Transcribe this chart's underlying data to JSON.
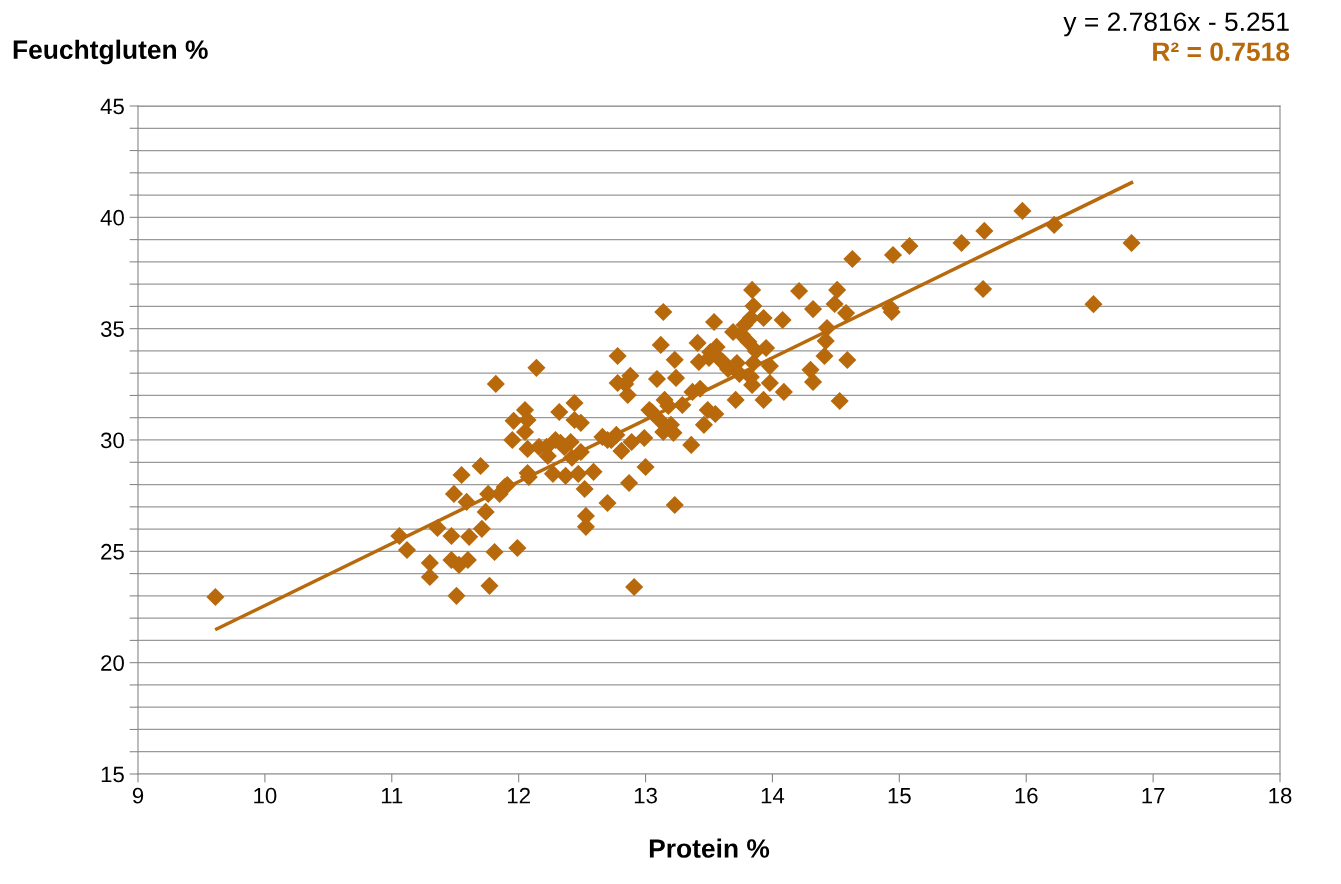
{
  "chart_data": {
    "type": "scatter",
    "xlabel": "Protein %",
    "ylabel": "Feuchtgluten %",
    "annotations": [
      "y = 2.7816x - 5.251",
      "R² = 0.7518"
    ],
    "xlim": [
      9,
      18
    ],
    "xticks": [
      9,
      10,
      11,
      12,
      13,
      14,
      15,
      16,
      17,
      18
    ],
    "ylim": [
      15,
      45
    ],
    "yticks": [
      15,
      {
        "value": 16,
        "label": null
      },
      {
        "value": 17,
        "label": null
      },
      {
        "value": 18,
        "label": null
      },
      {
        "value": 19,
        "label": null
      },
      20,
      {
        "value": 21,
        "label": null
      },
      {
        "value": 22,
        "label": null
      },
      {
        "value": 23,
        "label": null
      },
      {
        "value": 24,
        "label": null
      },
      25,
      {
        "value": 26,
        "label": null
      },
      {
        "value": 27,
        "label": null
      },
      {
        "value": 28,
        "label": null
      },
      {
        "value": 29,
        "label": null
      },
      30,
      {
        "value": 31,
        "label": null
      },
      {
        "value": 32,
        "label": null
      },
      {
        "value": 33,
        "label": null
      },
      {
        "value": 34,
        "label": null
      },
      35,
      {
        "value": 36,
        "label": null
      },
      {
        "value": 37,
        "label": null
      },
      {
        "value": 38,
        "label": null
      },
      {
        "value": 39,
        "label": null
      },
      40,
      {
        "value": 41,
        "label": null
      },
      {
        "value": 42,
        "label": null
      },
      {
        "value": 43,
        "label": null
      },
      {
        "value": 44,
        "label": null
      },
      45
    ],
    "grid": "y",
    "series": [
      {
        "marker": "diamond",
        "color": "#b8690c",
        "x": [
          9.61,
          11.06,
          11.12,
          11.3,
          11.3,
          11.36,
          11.49,
          11.55,
          11.59,
          11.47,
          11.47,
          11.53,
          11.51,
          11.6,
          11.61,
          11.71,
          11.7,
          11.74,
          11.76,
          11.77,
          11.81,
          11.85,
          11.89,
          11.91,
          11.82,
          11.95,
          11.96,
          11.99,
          12.05,
          12.05,
          12.07,
          12.07,
          12.07,
          12.08,
          12.14,
          12.16,
          12.22,
          12.23,
          12.27,
          12.29,
          12.32,
          12.33,
          12.37,
          12.36,
          12.41,
          12.42,
          12.44,
          12.47,
          12.44,
          12.49,
          12.49,
          12.52,
          12.53,
          12.53,
          12.59,
          12.66,
          12.7,
          12.7,
          12.73,
          12.77,
          12.78,
          12.78,
          12.81,
          12.84,
          12.86,
          12.88,
          12.89,
          12.87,
          12.91,
          12.99,
          13.0,
          13.03,
          13.05,
          13.09,
          13.11,
          13.14,
          13.12,
          13.14,
          13.15,
          13.18,
          13.2,
          13.22,
          13.23,
          13.24,
          13.23,
          13.29,
          13.36,
          13.37,
          13.41,
          13.42,
          13.43,
          13.46,
          13.49,
          13.5,
          13.51,
          13.54,
          13.55,
          13.56,
          13.59,
          13.61,
          13.65,
          13.72,
          13.69,
          13.71,
          13.74,
          13.76,
          13.78,
          13.81,
          13.83,
          13.83,
          13.84,
          13.85,
          13.84,
          13.85,
          13.87,
          13.93,
          13.93,
          13.95,
          13.98,
          13.98,
          14.08,
          14.09,
          14.21,
          14.3,
          14.32,
          14.32,
          14.41,
          14.42,
          14.43,
          14.49,
          14.51,
          14.53,
          14.58,
          14.59,
          14.63,
          14.93,
          14.94,
          14.95,
          15.08,
          15.49,
          15.66,
          15.67,
          15.97,
          16.22,
          16.53,
          16.83
        ],
        "values": [
          22.95,
          25.69,
          25.06,
          24.48,
          23.85,
          26.05,
          27.58,
          28.43,
          27.22,
          25.69,
          24.61,
          24.39,
          23.0,
          24.61,
          25.65,
          26.01,
          28.83,
          26.77,
          27.58,
          23.45,
          24.97,
          27.58,
          27.89,
          27.98,
          32.52,
          30.0,
          30.86,
          25.15,
          31.35,
          30.36,
          30.9,
          29.6,
          28.52,
          28.34,
          33.24,
          29.69,
          29.69,
          29.28,
          28.48,
          30.0,
          31.26,
          29.87,
          28.39,
          29.69,
          29.91,
          29.2,
          30.9,
          28.48,
          31.66,
          29.46,
          30.77,
          27.8,
          26.59,
          26.1,
          28.57,
          30.14,
          27.17,
          30.0,
          30.0,
          30.23,
          32.56,
          33.77,
          29.51,
          32.52,
          32.02,
          32.88,
          29.91,
          28.07,
          23.4,
          30.09,
          28.79,
          31.35,
          31.26,
          32.74,
          30.9,
          30.36,
          34.27,
          35.75,
          31.8,
          31.53,
          30.68,
          30.32,
          33.6,
          32.79,
          27.08,
          31.57,
          29.78,
          32.16,
          34.36,
          33.5,
          32.3,
          30.68,
          31.35,
          33.68,
          33.95,
          35.3,
          31.17,
          34.18,
          33.6,
          33.5,
          33.19,
          33.46,
          34.85,
          31.8,
          32.97,
          34.72,
          35.17,
          34.41,
          35.48,
          32.83,
          32.47,
          33.46,
          36.74,
          36.02,
          34.0,
          35.48,
          31.8,
          34.13,
          33.32,
          32.56,
          35.39,
          32.16,
          36.69,
          33.15,
          32.61,
          35.88,
          33.77,
          34.45,
          35.03,
          36.11,
          36.74,
          31.75,
          35.7,
          33.59,
          38.13,
          35.93,
          35.75,
          38.31,
          38.71,
          38.85,
          36.78,
          39.39,
          40.29,
          39.66,
          36.1,
          38.85
        ]
      },
      {
        "type": "line",
        "color": "#b8690c",
        "x": [
          9.62,
          16.83
        ],
        "values": [
          21.51,
          41.56
        ]
      }
    ]
  }
}
